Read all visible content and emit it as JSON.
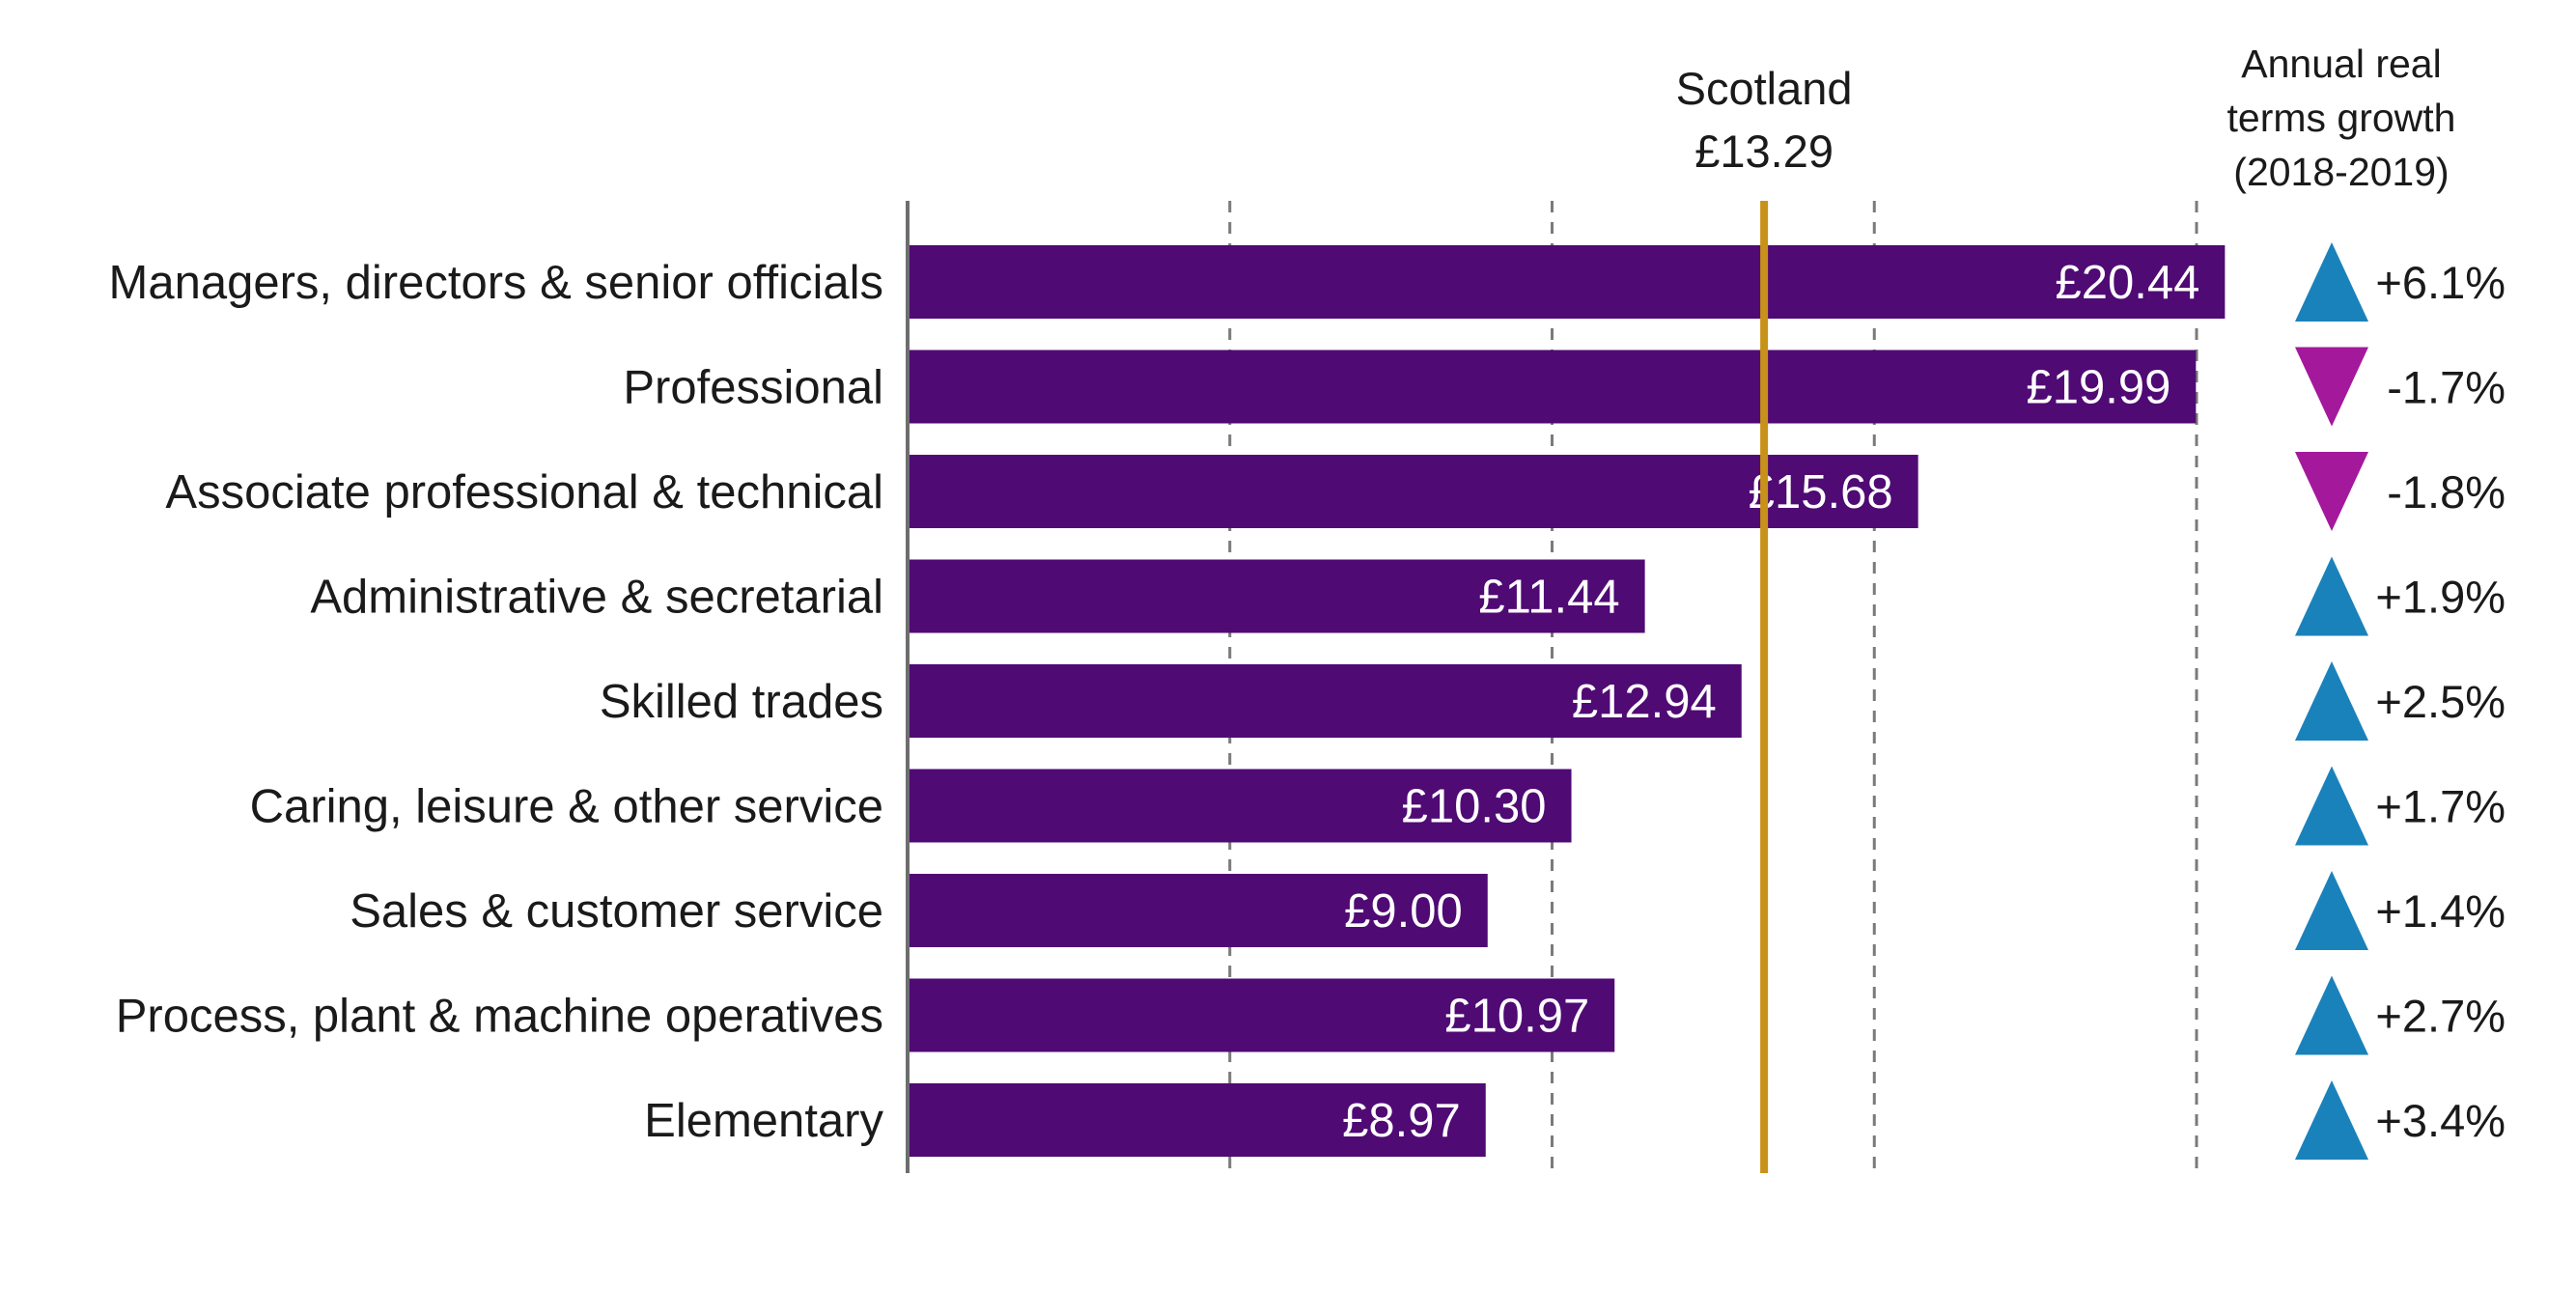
{
  "chart_data": {
    "type": "bar",
    "orientation": "horizontal",
    "categories": [
      "Managers, directors & senior officials",
      "Professional",
      "Associate professional & technical",
      "Administrative & secretarial",
      "Skilled trades",
      "Caring, leisure & other service",
      "Sales & customer service",
      "Process, plant & machine operatives",
      "Elementary"
    ],
    "values": [
      20.44,
      19.99,
      15.68,
      11.44,
      12.94,
      10.3,
      9.0,
      10.97,
      8.97
    ],
    "value_labels": [
      "£20.44",
      "£19.99",
      "£15.68",
      "£11.44",
      "£12.94",
      "£10.30",
      "£9.00",
      "£10.97",
      "£8.97"
    ],
    "xlim": [
      0,
      20
    ],
    "grid": true,
    "gridlines": [
      5,
      10,
      15,
      20
    ],
    "reference_line": {
      "name": "Scotland",
      "value": 13.29,
      "label": "£13.29"
    },
    "growth": {
      "header": [
        "Annual real",
        "terms growth",
        "(2018-2019)"
      ],
      "values": [
        6.1,
        -1.7,
        -1.8,
        1.9,
        2.5,
        1.7,
        1.4,
        2.7,
        3.4
      ],
      "labels": [
        "+6.1%",
        "-1.7%",
        "-1.8%",
        "+1.9%",
        "+2.5%",
        "+1.7%",
        "+1.4%",
        "+2.7%",
        "+3.4%"
      ]
    },
    "colors": {
      "bar": "#4f0a74",
      "reference_line": "#c8921a",
      "up_arrow": "#1a82bb",
      "down_arrow": "#a4189b",
      "grid": "#7a7a7a",
      "axis": "#6e6e6e"
    }
  }
}
